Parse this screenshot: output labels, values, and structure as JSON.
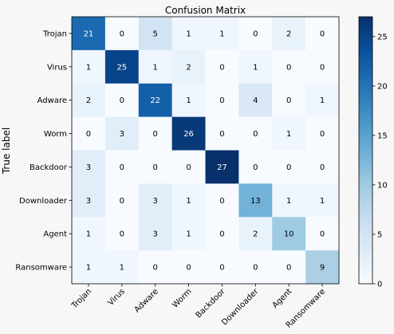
{
  "chart_data": {
    "type": "heatmap",
    "title": "Confusion Matrix",
    "ylabel": "True label",
    "xlabel": "",
    "row_labels": [
      "Trojan",
      "Virus",
      "Adware",
      "Worm",
      "Backdoor",
      "Downloader",
      "Agent",
      "Ransomware"
    ],
    "col_labels": [
      "Trojan",
      "Virus",
      "Adware",
      "Worm",
      "Backdoor",
      "Downloader",
      "Agent",
      "Ransomware"
    ],
    "values": [
      [
        21,
        0,
        5,
        1,
        1,
        0,
        2,
        0
      ],
      [
        1,
        25,
        1,
        2,
        0,
        1,
        0,
        0
      ],
      [
        2,
        0,
        22,
        1,
        0,
        4,
        0,
        1
      ],
      [
        0,
        3,
        0,
        26,
        0,
        0,
        1,
        0
      ],
      [
        3,
        0,
        0,
        0,
        27,
        0,
        0,
        0
      ],
      [
        3,
        0,
        3,
        1,
        0,
        13,
        1,
        1
      ],
      [
        1,
        0,
        3,
        1,
        0,
        2,
        10,
        0
      ],
      [
        1,
        1,
        0,
        0,
        0,
        0,
        0,
        9
      ]
    ],
    "colormap": "Blues",
    "colorbar": {
      "range": [
        0,
        27
      ],
      "ticks": [
        0,
        5,
        10,
        15,
        20,
        25
      ]
    }
  }
}
